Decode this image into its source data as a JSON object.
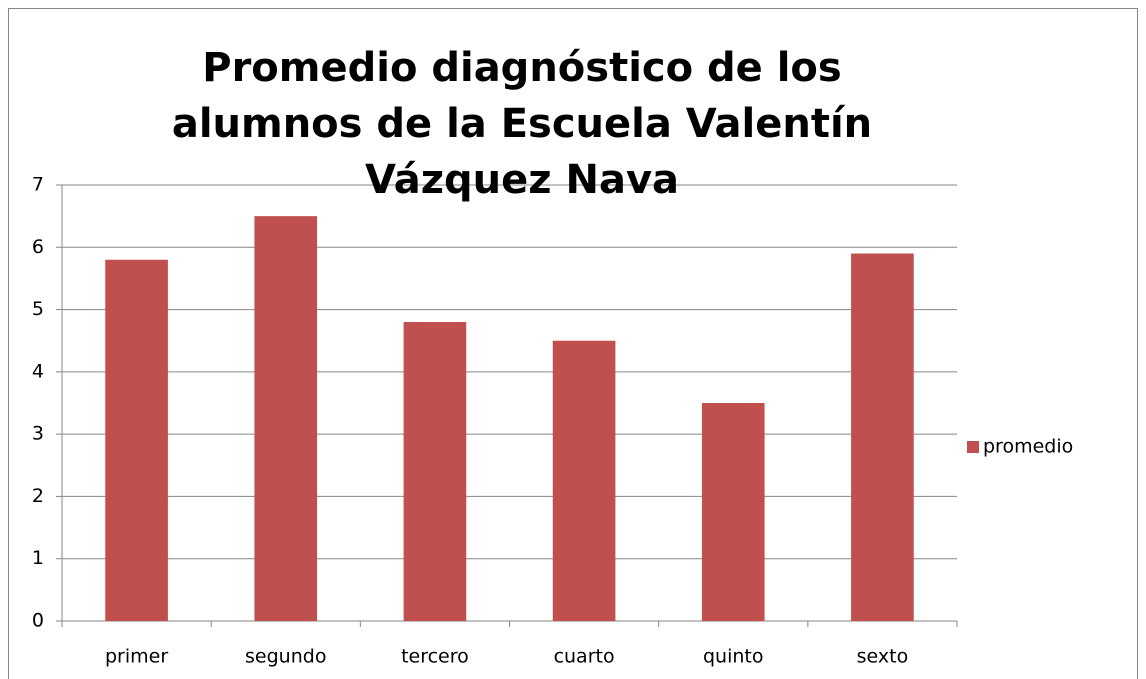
{
  "chart_data": {
    "type": "bar",
    "title": "Promedio diagnóstico de los alumnos de la Escuela Valentín Vázquez Nava",
    "categories": [
      "primer",
      "segundo",
      "tercero",
      "cuarto",
      "quinto",
      "sexto"
    ],
    "series": [
      {
        "name": "promedio",
        "color": "#c0504d",
        "values": [
          5.8,
          6.5,
          4.8,
          4.5,
          3.5,
          5.9
        ]
      }
    ],
    "ylim": [
      0,
      7
    ],
    "yticks": [
      0,
      1,
      2,
      3,
      4,
      5,
      6,
      7
    ],
    "grid": true,
    "legend": "right"
  }
}
